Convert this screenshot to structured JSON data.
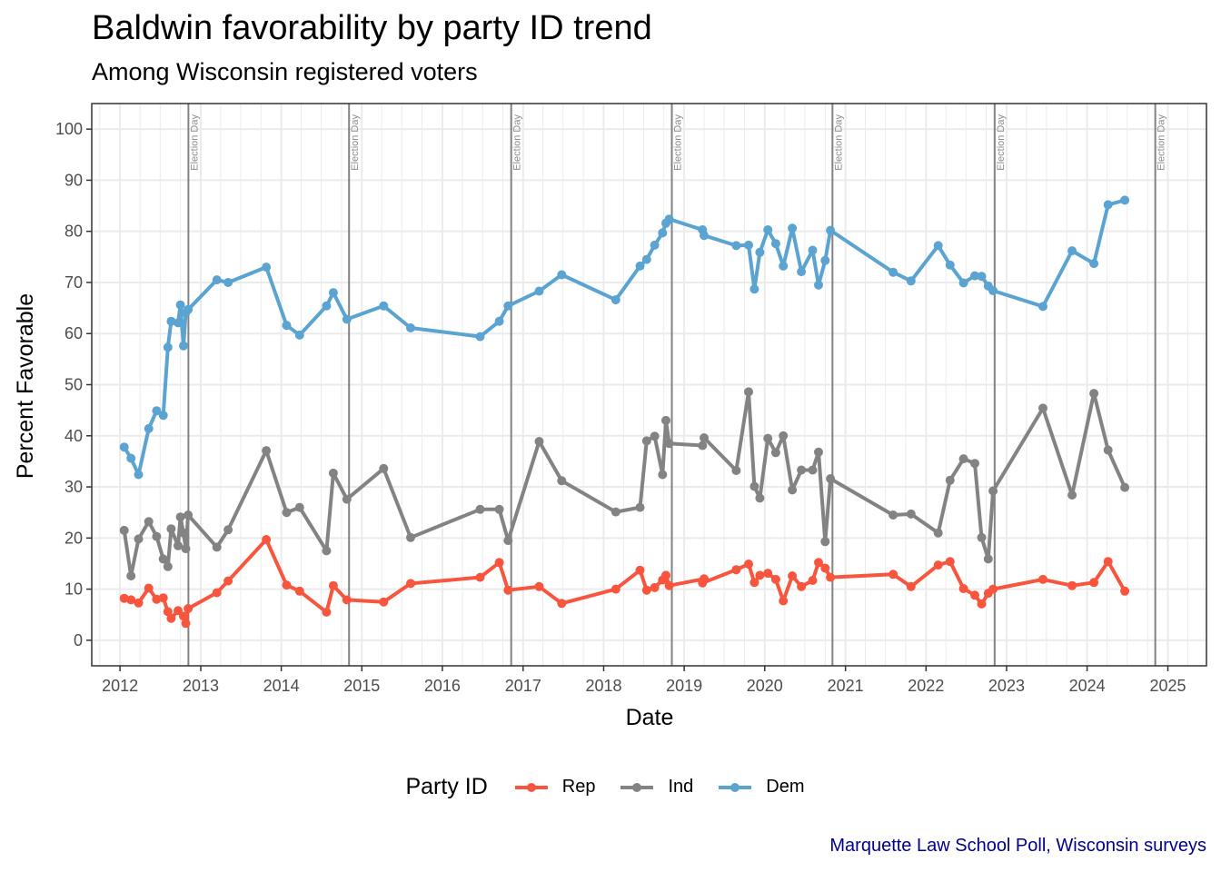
{
  "chart_data": {
    "type": "line",
    "title": "Baldwin favorability by party ID trend",
    "subtitle": "Among Wisconsin registered voters",
    "xlabel": "Date",
    "ylabel": "Percent Favorable",
    "caption": "Marquette Law School Poll, Wisconsin surveys",
    "legend_title": "Party ID",
    "legend_position": "bottom",
    "ylim": [
      -5,
      105
    ],
    "xlim": [
      "2011-08-26",
      "2025-06-25"
    ],
    "y_ticks": [
      0,
      10,
      20,
      30,
      40,
      50,
      60,
      70,
      80,
      90,
      100
    ],
    "x_ticks": [
      "2012",
      "2013",
      "2014",
      "2015",
      "2016",
      "2017",
      "2018",
      "2019",
      "2020",
      "2021",
      "2022",
      "2023",
      "2024",
      "2025"
    ],
    "grid": true,
    "vlines": {
      "label": "Election Day",
      "dates": [
        "2012-11-06",
        "2014-11-04",
        "2016-11-08",
        "2018-11-06",
        "2020-11-03",
        "2022-11-08",
        "2024-11-05"
      ]
    },
    "series": [
      {
        "name": "Rep",
        "color": "#f8553e",
        "points": [
          [
            "2012-01-20",
            8.2
          ],
          [
            "2012-02-20",
            7.9
          ],
          [
            "2012-03-25",
            7.3
          ],
          [
            "2012-05-10",
            10.2
          ],
          [
            "2012-06-15",
            8.0
          ],
          [
            "2012-07-15",
            8.3
          ],
          [
            "2012-08-05",
            5.6
          ],
          [
            "2012-08-20",
            4.3
          ],
          [
            "2012-09-20",
            5.8
          ],
          [
            "2012-10-15",
            4.7
          ],
          [
            "2012-10-25",
            3.3
          ],
          [
            "2012-11-05",
            6.2
          ],
          [
            "2013-03-15",
            9.3
          ],
          [
            "2013-05-05",
            11.6
          ],
          [
            "2013-10-25",
            19.7
          ],
          [
            "2014-01-25",
            10.8
          ],
          [
            "2014-03-25",
            9.6
          ],
          [
            "2014-07-25",
            5.5
          ],
          [
            "2014-08-25",
            10.7
          ],
          [
            "2014-10-25",
            7.9
          ],
          [
            "2015-04-10",
            7.5
          ],
          [
            "2015-08-10",
            11.1
          ],
          [
            "2016-06-20",
            12.3
          ],
          [
            "2016-09-15",
            15.2
          ],
          [
            "2016-10-25",
            9.8
          ],
          [
            "2017-03-15",
            10.5
          ],
          [
            "2017-06-25",
            7.2
          ],
          [
            "2018-02-25",
            10.0
          ],
          [
            "2018-06-15",
            13.7
          ],
          [
            "2018-07-15",
            9.8
          ],
          [
            "2018-08-20",
            10.3
          ],
          [
            "2018-09-25",
            11.8
          ],
          [
            "2018-10-10",
            12.7
          ],
          [
            "2018-10-25",
            10.7
          ],
          [
            "2019-04-01",
            12.0
          ],
          [
            "2019-03-25",
            11.2
          ],
          [
            "2019-08-25",
            13.8
          ],
          [
            "2019-10-20",
            14.9
          ],
          [
            "2019-11-15",
            11.3
          ],
          [
            "2019-12-10",
            12.7
          ],
          [
            "2020-01-15",
            13.1
          ],
          [
            "2020-02-20",
            11.9
          ],
          [
            "2020-03-25",
            7.7
          ],
          [
            "2020-05-05",
            12.6
          ],
          [
            "2020-06-15",
            10.5
          ],
          [
            "2020-08-05",
            11.7
          ],
          [
            "2020-09-01",
            15.2
          ],
          [
            "2020-10-01",
            14.1
          ],
          [
            "2020-10-25",
            12.3
          ],
          [
            "2021-08-05",
            12.9
          ],
          [
            "2021-10-25",
            10.5
          ],
          [
            "2022-02-25",
            14.7
          ],
          [
            "2022-04-20",
            15.4
          ],
          [
            "2022-06-20",
            10.1
          ],
          [
            "2022-08-10",
            8.8
          ],
          [
            "2022-09-10",
            7.1
          ],
          [
            "2022-10-10",
            9.2
          ],
          [
            "2022-11-01",
            10.0
          ],
          [
            "2023-06-15",
            11.9
          ],
          [
            "2023-10-25",
            10.7
          ],
          [
            "2024-02-01",
            11.3
          ],
          [
            "2024-04-05",
            15.4
          ],
          [
            "2024-06-20",
            9.6
          ]
        ]
      },
      {
        "name": "Ind",
        "color": "#838383",
        "points": [
          [
            "2012-01-20",
            21.5
          ],
          [
            "2012-02-20",
            12.6
          ],
          [
            "2012-03-25",
            19.8
          ],
          [
            "2012-05-10",
            23.2
          ],
          [
            "2012-06-15",
            20.3
          ],
          [
            "2012-07-15",
            15.9
          ],
          [
            "2012-08-05",
            14.4
          ],
          [
            "2012-08-20",
            21.8
          ],
          [
            "2012-09-20",
            18.5
          ],
          [
            "2012-10-01",
            24.1
          ],
          [
            "2012-10-15",
            21.0
          ],
          [
            "2012-10-25",
            17.9
          ],
          [
            "2012-11-05",
            24.5
          ],
          [
            "2013-03-15",
            18.2
          ],
          [
            "2013-05-05",
            21.6
          ],
          [
            "2013-10-25",
            37.1
          ],
          [
            "2014-01-25",
            25.0
          ],
          [
            "2014-03-25",
            26.0
          ],
          [
            "2014-07-25",
            17.5
          ],
          [
            "2014-08-25",
            32.7
          ],
          [
            "2014-10-25",
            27.6
          ],
          [
            "2015-04-10",
            33.6
          ],
          [
            "2015-08-10",
            20.1
          ],
          [
            "2016-06-20",
            25.6
          ],
          [
            "2016-09-15",
            25.6
          ],
          [
            "2016-10-25",
            19.5
          ],
          [
            "2017-03-15",
            38.9
          ],
          [
            "2017-06-25",
            31.2
          ],
          [
            "2018-02-25",
            25.1
          ],
          [
            "2018-06-15",
            26.0
          ],
          [
            "2018-07-15",
            39.0
          ],
          [
            "2018-08-20",
            39.9
          ],
          [
            "2018-09-25",
            32.4
          ],
          [
            "2018-10-10",
            43.0
          ],
          [
            "2018-10-25",
            38.5
          ],
          [
            "2019-03-25",
            38.1
          ],
          [
            "2019-04-01",
            39.6
          ],
          [
            "2019-08-25",
            33.2
          ],
          [
            "2019-10-20",
            48.6
          ],
          [
            "2019-11-15",
            30.1
          ],
          [
            "2019-12-10",
            27.8
          ],
          [
            "2020-01-15",
            39.5
          ],
          [
            "2020-02-20",
            36.7
          ],
          [
            "2020-03-25",
            40.0
          ],
          [
            "2020-05-05",
            29.4
          ],
          [
            "2020-06-15",
            33.3
          ],
          [
            "2020-08-05",
            33.3
          ],
          [
            "2020-09-01",
            36.8
          ],
          [
            "2020-10-01",
            19.3
          ],
          [
            "2020-10-25",
            31.6
          ],
          [
            "2021-08-05",
            24.5
          ],
          [
            "2021-10-25",
            24.7
          ],
          [
            "2022-02-25",
            21.0
          ],
          [
            "2022-04-20",
            31.3
          ],
          [
            "2022-06-20",
            35.5
          ],
          [
            "2022-08-10",
            34.6
          ],
          [
            "2022-09-10",
            20.1
          ],
          [
            "2022-10-10",
            15.9
          ],
          [
            "2022-11-01",
            29.2
          ],
          [
            "2023-06-15",
            45.4
          ],
          [
            "2023-10-25",
            28.4
          ],
          [
            "2024-02-01",
            48.3
          ],
          [
            "2024-04-05",
            37.2
          ],
          [
            "2024-06-20",
            29.9
          ]
        ]
      },
      {
        "name": "Dem",
        "color": "#5ba3d1",
        "points": [
          [
            "2012-01-20",
            37.8
          ],
          [
            "2012-02-20",
            35.6
          ],
          [
            "2012-03-25",
            32.4
          ],
          [
            "2012-05-10",
            41.4
          ],
          [
            "2012-06-15",
            44.9
          ],
          [
            "2012-07-15",
            44.0
          ],
          [
            "2012-08-05",
            57.3
          ],
          [
            "2012-08-20",
            62.4
          ],
          [
            "2012-09-20",
            62.1
          ],
          [
            "2012-10-01",
            65.6
          ],
          [
            "2012-10-15",
            57.6
          ],
          [
            "2012-10-25",
            64.1
          ],
          [
            "2012-11-05",
            64.7
          ],
          [
            "2013-03-15",
            70.5
          ],
          [
            "2013-05-05",
            70.0
          ],
          [
            "2013-10-25",
            73.0
          ],
          [
            "2014-01-25",
            61.6
          ],
          [
            "2014-03-25",
            59.7
          ],
          [
            "2014-07-25",
            65.4
          ],
          [
            "2014-08-25",
            68.0
          ],
          [
            "2014-10-25",
            62.8
          ],
          [
            "2015-04-10",
            65.4
          ],
          [
            "2015-08-10",
            61.1
          ],
          [
            "2016-06-20",
            59.4
          ],
          [
            "2016-09-15",
            62.4
          ],
          [
            "2016-10-25",
            65.4
          ],
          [
            "2017-03-15",
            68.3
          ],
          [
            "2017-06-25",
            71.5
          ],
          [
            "2018-02-25",
            66.6
          ],
          [
            "2018-06-15",
            73.2
          ],
          [
            "2018-07-15",
            74.5
          ],
          [
            "2018-08-20",
            77.3
          ],
          [
            "2018-09-25",
            79.7
          ],
          [
            "2018-10-10",
            81.6
          ],
          [
            "2018-10-25",
            82.4
          ],
          [
            "2019-03-25",
            80.3
          ],
          [
            "2019-04-01",
            79.2
          ],
          [
            "2019-08-25",
            77.2
          ],
          [
            "2019-10-20",
            77.3
          ],
          [
            "2019-11-15",
            68.7
          ],
          [
            "2019-12-10",
            75.9
          ],
          [
            "2020-01-15",
            80.3
          ],
          [
            "2020-02-20",
            77.6
          ],
          [
            "2020-03-25",
            73.2
          ],
          [
            "2020-05-05",
            80.6
          ],
          [
            "2020-06-15",
            72.1
          ],
          [
            "2020-08-05",
            76.3
          ],
          [
            "2020-09-01",
            69.5
          ],
          [
            "2020-10-01",
            74.3
          ],
          [
            "2020-10-25",
            80.2
          ],
          [
            "2021-08-05",
            72.0
          ],
          [
            "2021-10-25",
            70.3
          ],
          [
            "2022-02-25",
            77.2
          ],
          [
            "2022-04-20",
            73.4
          ],
          [
            "2022-06-20",
            69.9
          ],
          [
            "2022-08-10",
            71.3
          ],
          [
            "2022-09-10",
            71.2
          ],
          [
            "2022-10-10",
            69.3
          ],
          [
            "2022-11-01",
            68.4
          ],
          [
            "2023-06-15",
            65.3
          ],
          [
            "2023-10-25",
            76.2
          ],
          [
            "2024-02-01",
            73.7
          ],
          [
            "2024-04-05",
            85.2
          ],
          [
            "2024-06-20",
            86.1
          ]
        ]
      }
    ]
  }
}
